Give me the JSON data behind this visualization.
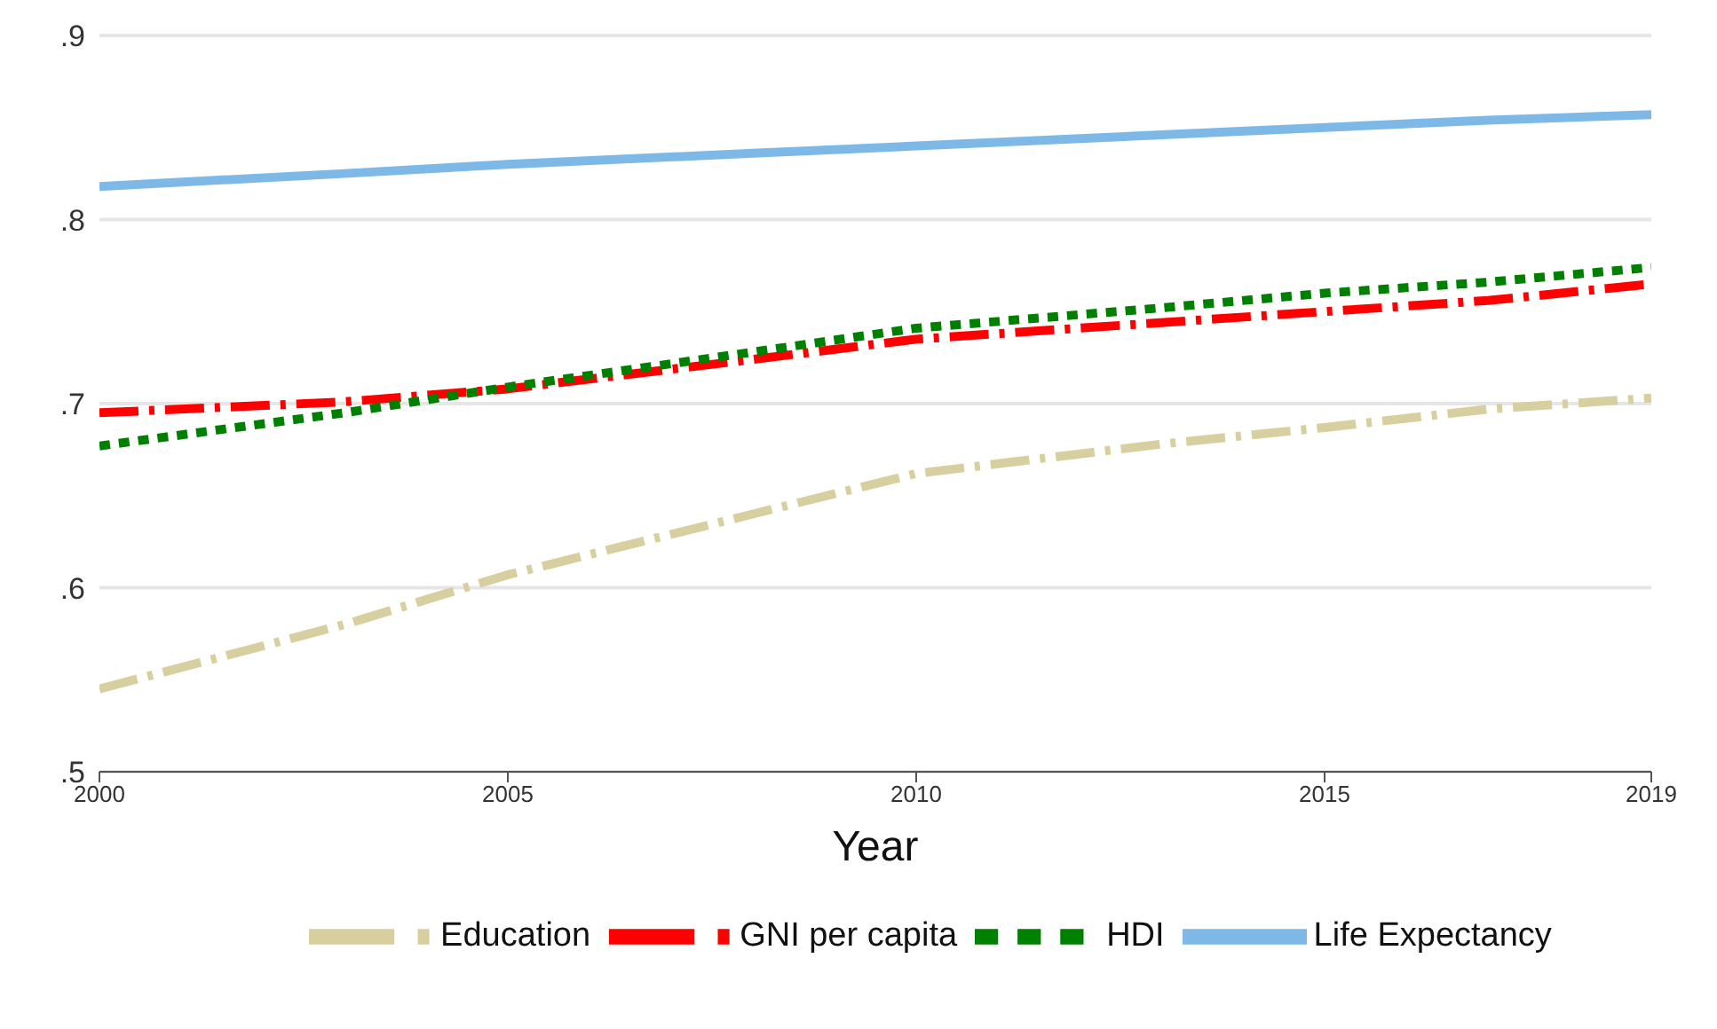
{
  "chart_data": {
    "type": "line",
    "xlabel": "Year",
    "x": [
      2000,
      2003,
      2005,
      2008,
      2010,
      2013,
      2015,
      2017,
      2019
    ],
    "series": [
      {
        "name": "Life Expectancy",
        "color": "#7eb8e6",
        "line_style": "solid",
        "values": [
          0.818,
          0.825,
          0.83,
          0.836,
          0.84,
          0.846,
          0.85,
          0.854,
          0.857
        ]
      },
      {
        "name": "Education",
        "color": "#d8cfa0",
        "line_style": "dashed",
        "values": [
          0.545,
          0.58,
          0.607,
          0.64,
          0.662,
          0.678,
          0.687,
          0.697,
          0.703
        ]
      },
      {
        "name": "GNI per capita",
        "color": "#ff0000",
        "line_style": "dashed",
        "values": [
          0.695,
          0.701,
          0.708,
          0.724,
          0.735,
          0.744,
          0.75,
          0.756,
          0.765
        ]
      },
      {
        "name": "HDI",
        "color": "#008000",
        "line_style": "dotted",
        "values": [
          0.677,
          0.695,
          0.709,
          0.728,
          0.741,
          0.752,
          0.76,
          0.766,
          0.774
        ]
      }
    ],
    "xlim": [
      2000,
      2019
    ],
    "xticks": [
      2000,
      2005,
      2010,
      2015,
      2019
    ],
    "ylim": [
      0.5,
      0.9
    ],
    "yticks": [
      {
        "value": 0.5,
        "label": ".5"
      },
      {
        "value": 0.6,
        "label": ".6"
      },
      {
        "value": 0.7,
        "label": ".7"
      },
      {
        "value": 0.8,
        "label": ".8"
      },
      {
        "value": 0.9,
        "label": ".9"
      }
    ],
    "grid": "y",
    "legend": "bottom",
    "marker": "none"
  }
}
